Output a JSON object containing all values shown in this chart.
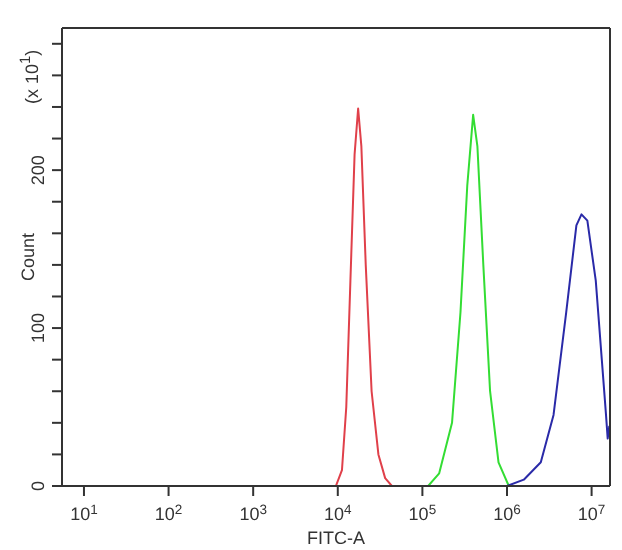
{
  "chart_data": {
    "type": "line",
    "xlabel": "FITC-A",
    "ylabel": "Count",
    "annotations": [
      "(x 10$^{1}$)"
    ],
    "log": "x",
    "grid": false,
    "legend": false,
    "marker": "none",
    "line_style": "solid",
    "xlim": [
      5.5,
      16500000
    ],
    "xticks": [
      {
        "value": 10,
        "label": "10$^{1}$"
      },
      {
        "value": 100,
        "label": "10$^{2}$"
      },
      {
        "value": 1000,
        "label": "10$^{3}$"
      },
      {
        "value": 10000,
        "label": "10$^{4}$"
      },
      {
        "value": 100000,
        "label": "10$^{5}$"
      },
      {
        "value": 1000000,
        "label": "10$^{6}$"
      },
      {
        "value": 10000000,
        "label": "10$^{7}$"
      }
    ],
    "ylim": [
      0,
      290
    ],
    "yticks": [
      0,
      {
        "value": 20,
        "label": null
      },
      {
        "value": 40,
        "label": null
      },
      {
        "value": 60,
        "label": null
      },
      {
        "value": 80,
        "label": null
      },
      100,
      {
        "value": 120,
        "label": null
      },
      {
        "value": 140,
        "label": null
      },
      {
        "value": 160,
        "label": null
      },
      {
        "value": 180,
        "label": null
      },
      200,
      {
        "value": 220,
        "label": null
      },
      {
        "value": 240,
        "label": null
      },
      {
        "value": 260,
        "label": null
      },
      {
        "value": 280,
        "label": null
      }
    ],
    "series": [
      {
        "color": "#e0404a",
        "x": [
          9500,
          11200,
          12600,
          14100,
          15800,
          17400,
          19000,
          21400,
          25100,
          30200,
          36300,
          43600
        ],
        "values": [
          0,
          10,
          50,
          130,
          210,
          239,
          215,
          140,
          60,
          20,
          5,
          0
        ]
      },
      {
        "color": "#33dd33",
        "x": [
          117000,
          158000,
          224000,
          282000,
          339000,
          398000,
          447000,
          525000,
          631000,
          794000,
          1050000
        ],
        "values": [
          0,
          8,
          40,
          110,
          190,
          235,
          215,
          140,
          60,
          15,
          0
        ]
      },
      {
        "color": "#2a2aa8",
        "x": [
          1000000,
          1580000,
          2510000,
          3550000,
          5010000,
          6610000,
          7590000,
          8910000,
          11200000,
          13200000,
          14800000,
          15500000,
          16200000
        ],
        "values": [
          0,
          4,
          15,
          45,
          110,
          165,
          172,
          168,
          130,
          80,
          45,
          30,
          38
        ]
      }
    ]
  }
}
